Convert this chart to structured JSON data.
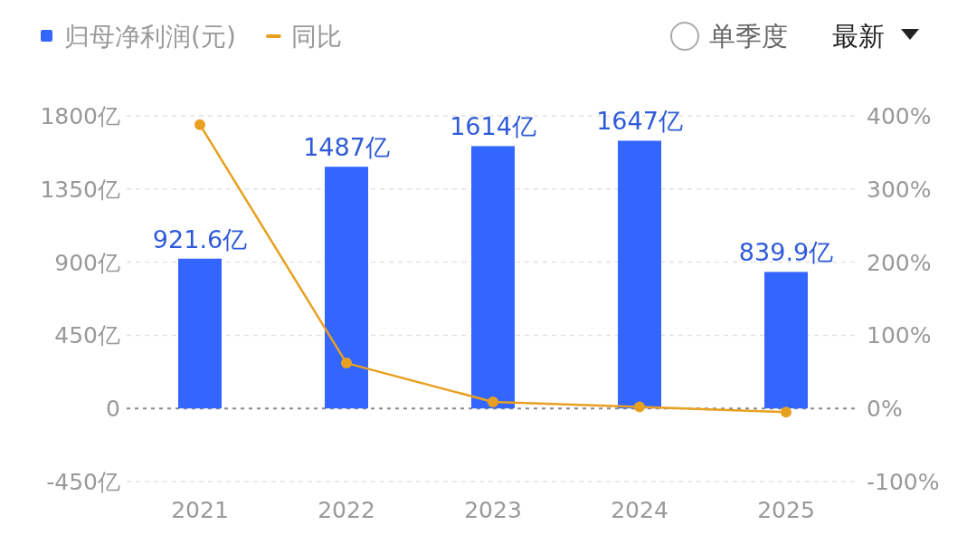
{
  "chart_data": {
    "type": "bar",
    "categories": [
      "2021",
      "2022",
      "2023",
      "2024",
      "2025"
    ],
    "series": [
      {
        "name": "归母净利润(元)",
        "color": "#3366ff",
        "values": [
          921.6,
          1487,
          1614,
          1647,
          839.9
        ],
        "value_labels": [
          "921.6亿",
          "1487亿",
          "1614亿",
          "1647亿",
          "839.9亿"
        ]
      },
      {
        "name": "同比",
        "type": "line",
        "axis": "y2",
        "color": "#e8a020",
        "values": [
          388,
          62,
          9,
          2,
          -5
        ]
      }
    ],
    "ylim": [
      -450,
      1800
    ],
    "yticks": [
      {
        "value": -450,
        "label": "-450亿"
      },
      {
        "value": 0,
        "label": "0"
      },
      {
        "value": 450,
        "label": "450亿"
      },
      {
        "value": 900,
        "label": "900亿"
      },
      {
        "value": 1350,
        "label": "1350亿"
      },
      {
        "value": 1800,
        "label": "1800亿"
      }
    ],
    "y2lim": [
      -100,
      400
    ],
    "y2ticks": [
      {
        "value": -100,
        "label": "-100%"
      },
      {
        "value": 0,
        "label": "0%"
      },
      {
        "value": 100,
        "label": "100%"
      },
      {
        "value": 200,
        "label": "200%"
      },
      {
        "value": 300,
        "label": "300%"
      },
      {
        "value": 400,
        "label": "400%"
      }
    ],
    "ref_lines": [
      {
        "axis": "y",
        "value": 0,
        "color": "#888888",
        "line_style": "dashed"
      }
    ],
    "grid": "y",
    "legend": "top left",
    "marker": "circle",
    "annotations": [
      "单季度",
      "最新"
    ]
  }
}
